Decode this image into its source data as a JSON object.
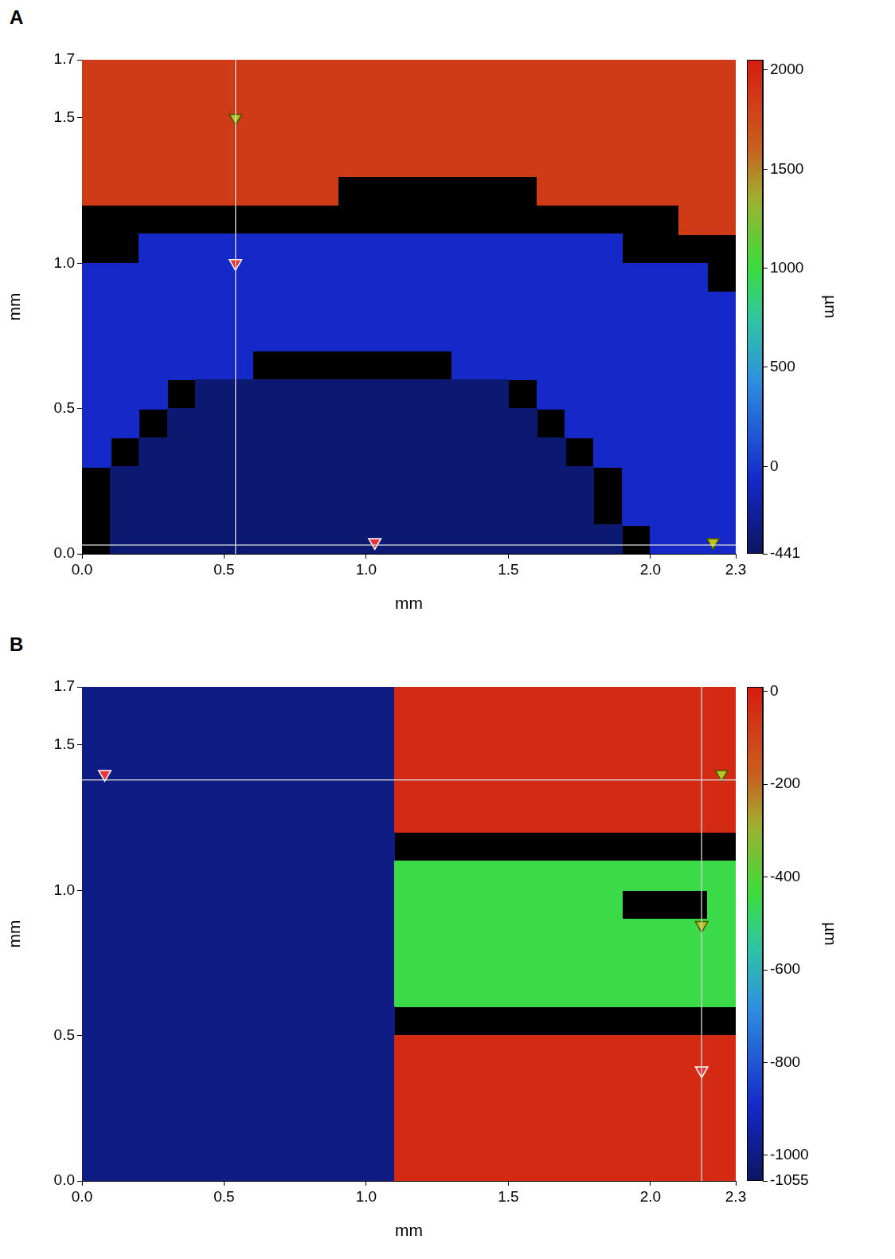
{
  "chart_data": [
    {
      "type": "heatmap",
      "panel": "A",
      "xlabel": "mm",
      "ylabel": "mm",
      "xlim": [
        0,
        2.3
      ],
      "xticks": [
        {
          "value": 0,
          "label": "0.0"
        },
        0.5,
        {
          "value": 1,
          "label": "1.0"
        },
        1.5,
        {
          "value": 2,
          "label": "2.0"
        },
        2.3
      ],
      "ylim": [
        0,
        1.7
      ],
      "yticks": [
        {
          "value": 0,
          "label": "0.0"
        },
        0.5,
        {
          "value": 1,
          "label": "1.0"
        },
        1.5,
        1.7
      ],
      "grid": false,
      "cells": [
        [
          1850,
          1850,
          1850,
          1850,
          1850,
          1850,
          1850,
          1850,
          1850,
          1850,
          1850,
          1850,
          1850,
          1850,
          1850,
          1850,
          1850,
          1850,
          1850,
          1850,
          1850,
          1850,
          1850
        ],
        [
          1850,
          1850,
          1850,
          1850,
          1850,
          1850,
          1850,
          1850,
          1850,
          1850,
          1850,
          1850,
          1850,
          1850,
          1850,
          1850,
          1850,
          1850,
          1850,
          1850,
          1850,
          1850,
          1850
        ],
        [
          1850,
          1850,
          1850,
          1850,
          1850,
          1850,
          1850,
          1850,
          1850,
          1850,
          1850,
          1850,
          1850,
          1850,
          1850,
          1850,
          1850,
          1850,
          1850,
          1850,
          1850,
          1850,
          1850
        ],
        [
          1850,
          1850,
          1850,
          1850,
          1850,
          1850,
          1850,
          1850,
          1850,
          1850,
          1850,
          1850,
          1850,
          1850,
          1850,
          1850,
          1850,
          1850,
          1850,
          1850,
          1850,
          1850,
          1850
        ],
        [
          1850,
          1850,
          1850,
          1850,
          1850,
          1850,
          1850,
          1850,
          1850,
          null,
          null,
          null,
          null,
          null,
          null,
          null,
          1850,
          1850,
          1850,
          1850,
          1850,
          1850,
          1850
        ],
        [
          null,
          null,
          null,
          null,
          null,
          null,
          null,
          null,
          null,
          null,
          null,
          null,
          null,
          null,
          null,
          null,
          null,
          null,
          null,
          null,
          null,
          1850,
          1850
        ],
        [
          null,
          null,
          -60,
          -60,
          -60,
          -60,
          -60,
          -60,
          -60,
          -60,
          -60,
          -60,
          -60,
          -60,
          -60,
          -60,
          -60,
          -60,
          -60,
          null,
          null,
          null,
          null
        ],
        [
          -60,
          -60,
          -60,
          -60,
          -60,
          -60,
          -60,
          -60,
          -60,
          -60,
          -60,
          -60,
          -60,
          -60,
          -60,
          -60,
          -60,
          -60,
          -60,
          -60,
          -60,
          -60,
          null
        ],
        [
          -60,
          -60,
          -60,
          -60,
          -60,
          -60,
          -60,
          -60,
          -60,
          -60,
          -60,
          -60,
          -60,
          -60,
          -60,
          -60,
          -60,
          -60,
          -60,
          -60,
          -60,
          -60,
          -60
        ],
        [
          -60,
          -60,
          -60,
          -60,
          -60,
          -60,
          -60,
          -60,
          -60,
          -60,
          -60,
          -60,
          -60,
          -60,
          -60,
          -60,
          -60,
          -60,
          -60,
          -60,
          -60,
          -60,
          -60
        ],
        [
          -60,
          -60,
          -60,
          -60,
          -60,
          -60,
          null,
          null,
          null,
          null,
          null,
          null,
          null,
          -60,
          -60,
          -60,
          -60,
          -60,
          -60,
          -60,
          -60,
          -60,
          -60
        ],
        [
          -60,
          -60,
          -60,
          null,
          -380,
          -380,
          -380,
          -380,
          -380,
          -380,
          -380,
          -380,
          -380,
          -380,
          -380,
          null,
          -60,
          -60,
          -60,
          -60,
          -60,
          -60,
          -60
        ],
        [
          -60,
          -60,
          null,
          -380,
          -380,
          -380,
          -380,
          -380,
          -380,
          -380,
          -380,
          -380,
          -380,
          -380,
          -380,
          -380,
          null,
          -60,
          -60,
          -60,
          -60,
          -60,
          -60
        ],
        [
          -60,
          null,
          -380,
          -380,
          -380,
          -380,
          -380,
          -380,
          -380,
          -380,
          -380,
          -380,
          -380,
          -380,
          -380,
          -380,
          -380,
          null,
          -60,
          -60,
          -60,
          -60,
          -60
        ],
        [
          null,
          -380,
          -380,
          -380,
          -380,
          -380,
          -380,
          -380,
          -380,
          -380,
          -380,
          -380,
          -380,
          -380,
          -380,
          -380,
          -380,
          -380,
          null,
          -60,
          -60,
          -60,
          -60
        ],
        [
          null,
          -380,
          -380,
          -380,
          -380,
          -380,
          -380,
          -380,
          -380,
          -380,
          -380,
          -380,
          -380,
          -380,
          -380,
          -380,
          -380,
          -380,
          null,
          -60,
          -60,
          -60,
          -60
        ],
        [
          null,
          -380,
          -380,
          -380,
          -380,
          -380,
          -380,
          -380,
          -380,
          -380,
          -380,
          -380,
          -380,
          -380,
          -380,
          -380,
          -380,
          -380,
          -380,
          null,
          -60,
          -60,
          -60
        ]
      ],
      "colorbar": {
        "label": "µm",
        "range": [
          -441,
          2052
        ],
        "ticks": [
          -441,
          0,
          500,
          1000,
          1500,
          2000
        ]
      },
      "cursor": {
        "x": 0.54,
        "y": 0.03
      },
      "markers": {
        "marker": "triangle_down",
        "points": [
          {
            "x": 0.54,
            "y": 1.5,
            "color": "yellow"
          },
          {
            "x": 0.54,
            "y": 1.0,
            "color": "red"
          },
          {
            "x": 1.03,
            "y": 0.04,
            "color": "red"
          },
          {
            "x": 2.22,
            "y": 0.04,
            "color": "yellow"
          }
        ]
      }
    },
    {
      "type": "heatmap",
      "panel": "B",
      "xlabel": "mm",
      "ylabel": "mm",
      "xlim": [
        0,
        2.3
      ],
      "xticks": [
        {
          "value": 0,
          "label": "0.0"
        },
        0.5,
        {
          "value": 1,
          "label": "1.0"
        },
        1.5,
        {
          "value": 2,
          "label": "2.0"
        },
        2.3
      ],
      "ylim": [
        0,
        1.7
      ],
      "yticks": [
        {
          "value": 0,
          "label": "0.0"
        },
        0.5,
        {
          "value": 1,
          "label": "1.0"
        },
        1.5,
        1.7
      ],
      "grid": false,
      "cells": [
        [
          -1000,
          -1000,
          -1000,
          -1000,
          -1000,
          -1000,
          -1000,
          -1000,
          -1000,
          -1000,
          -1000,
          -30,
          -30,
          -30,
          -30,
          -30,
          -30,
          -30,
          -30,
          -30,
          -30,
          -30,
          -30
        ],
        [
          -1000,
          -1000,
          -1000,
          -1000,
          -1000,
          -1000,
          -1000,
          -1000,
          -1000,
          -1000,
          -1000,
          -30,
          -30,
          -30,
          -30,
          -30,
          -30,
          -30,
          -30,
          -30,
          -30,
          -30,
          -30
        ],
        [
          -1000,
          -1000,
          -1000,
          -1000,
          -1000,
          -1000,
          -1000,
          -1000,
          -1000,
          -1000,
          -1000,
          -30,
          -30,
          -30,
          -30,
          -30,
          -30,
          -30,
          -30,
          -30,
          -30,
          -30,
          -30
        ],
        [
          -1000,
          -1000,
          -1000,
          -1000,
          -1000,
          -1000,
          -1000,
          -1000,
          -1000,
          -1000,
          -1000,
          -30,
          -30,
          -30,
          -30,
          -30,
          -30,
          -30,
          -30,
          -30,
          -30,
          -30,
          -30
        ],
        [
          -1000,
          -1000,
          -1000,
          -1000,
          -1000,
          -1000,
          -1000,
          -1000,
          -1000,
          -1000,
          -1000,
          -30,
          -30,
          -30,
          -30,
          -30,
          -30,
          -30,
          -30,
          -30,
          -30,
          -30,
          -30
        ],
        [
          -1000,
          -1000,
          -1000,
          -1000,
          -1000,
          -1000,
          -1000,
          -1000,
          -1000,
          -1000,
          -1000,
          null,
          null,
          null,
          null,
          null,
          null,
          null,
          null,
          null,
          null,
          null,
          null
        ],
        [
          -1000,
          -1000,
          -1000,
          -1000,
          -1000,
          -1000,
          -1000,
          -1000,
          -1000,
          -1000,
          -1000,
          -450,
          -450,
          -450,
          -450,
          -450,
          -450,
          -450,
          -450,
          -450,
          -450,
          -450,
          -450
        ],
        [
          -1000,
          -1000,
          -1000,
          -1000,
          -1000,
          -1000,
          -1000,
          -1000,
          -1000,
          -1000,
          -1000,
          -450,
          -450,
          -450,
          -450,
          -450,
          -450,
          -450,
          -450,
          null,
          null,
          null,
          -450
        ],
        [
          -1000,
          -1000,
          -1000,
          -1000,
          -1000,
          -1000,
          -1000,
          -1000,
          -1000,
          -1000,
          -1000,
          -450,
          -450,
          -450,
          -450,
          -450,
          -450,
          -450,
          -450,
          -450,
          -450,
          -450,
          -450
        ],
        [
          -1000,
          -1000,
          -1000,
          -1000,
          -1000,
          -1000,
          -1000,
          -1000,
          -1000,
          -1000,
          -1000,
          -450,
          -450,
          -450,
          -450,
          -450,
          -450,
          -450,
          -450,
          -450,
          -450,
          -450,
          -450
        ],
        [
          -1000,
          -1000,
          -1000,
          -1000,
          -1000,
          -1000,
          -1000,
          -1000,
          -1000,
          -1000,
          -1000,
          -450,
          -450,
          -450,
          -450,
          -450,
          -450,
          -450,
          -450,
          -450,
          -450,
          -450,
          -450
        ],
        [
          -1000,
          -1000,
          -1000,
          -1000,
          -1000,
          -1000,
          -1000,
          -1000,
          -1000,
          -1000,
          -1000,
          null,
          null,
          null,
          null,
          null,
          null,
          null,
          null,
          null,
          null,
          null,
          null
        ],
        [
          -1000,
          -1000,
          -1000,
          -1000,
          -1000,
          -1000,
          -1000,
          -1000,
          -1000,
          -1000,
          -1000,
          -30,
          -30,
          -30,
          -30,
          -30,
          -30,
          -30,
          -30,
          -30,
          -30,
          -30,
          -30
        ],
        [
          -1000,
          -1000,
          -1000,
          -1000,
          -1000,
          -1000,
          -1000,
          -1000,
          -1000,
          -1000,
          -1000,
          -30,
          -30,
          -30,
          -30,
          -30,
          -30,
          -30,
          -30,
          -30,
          -30,
          -30,
          -30
        ],
        [
          -1000,
          -1000,
          -1000,
          -1000,
          -1000,
          -1000,
          -1000,
          -1000,
          -1000,
          -1000,
          -1000,
          -30,
          -30,
          -30,
          -30,
          -30,
          -30,
          -30,
          -30,
          -30,
          -30,
          -30,
          -30
        ],
        [
          -1000,
          -1000,
          -1000,
          -1000,
          -1000,
          -1000,
          -1000,
          -1000,
          -1000,
          -1000,
          -1000,
          -30,
          -30,
          -30,
          -30,
          -30,
          -30,
          -30,
          -30,
          -30,
          -30,
          -30,
          -30
        ],
        [
          -1000,
          -1000,
          -1000,
          -1000,
          -1000,
          -1000,
          -1000,
          -1000,
          -1000,
          -1000,
          -1000,
          -30,
          -30,
          -30,
          -30,
          -30,
          -30,
          -30,
          -30,
          -30,
          -30,
          -30,
          -30
        ]
      ],
      "colorbar": {
        "label": "µm",
        "range": [
          -1055,
          10
        ],
        "ticks": [
          -1055,
          -1000,
          -800,
          -600,
          -400,
          -200,
          0
        ]
      },
      "cursor": {
        "x": 2.18,
        "y": 1.38
      },
      "markers": {
        "marker": "triangle_down",
        "points": [
          {
            "x": 0.08,
            "y": 1.4,
            "color": "red"
          },
          {
            "x": 2.25,
            "y": 1.4,
            "color": "yellow"
          },
          {
            "x": 2.18,
            "y": 0.88,
            "color": "yellow"
          },
          {
            "x": 2.18,
            "y": 0.38,
            "color": "red"
          }
        ]
      }
    }
  ]
}
